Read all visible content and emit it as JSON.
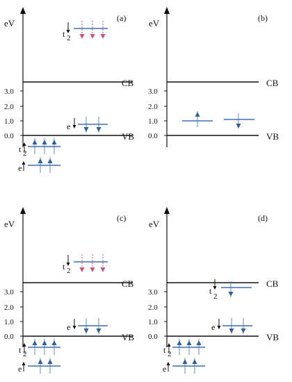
{
  "panels": [
    {
      "label": "(a)",
      "y_axis_label": "eV",
      "cb_label": "CB",
      "vb_label": "VB",
      "ticks": [
        "3.0",
        "2.0",
        "1.0",
        "0.0"
      ],
      "levels": [
        {
          "symbol": "t",
          "sub": "2",
          "kind": "empty_down"
        },
        {
          "symbol": "e",
          "sub": "",
          "kind": "filled_down"
        },
        {
          "symbol": "t",
          "sub": "2",
          "kind": "filled_up"
        },
        {
          "symbol": "e",
          "sub": "",
          "kind": "filled_up"
        }
      ]
    },
    {
      "label": "(b)",
      "y_axis_label": "eV",
      "cb_label": "CB",
      "vb_label": "VB",
      "ticks": [
        "3.0",
        "2.0",
        "1.0",
        "0.0"
      ],
      "levels": [
        {
          "symbol": "",
          "sub": "",
          "kind": "spin_up"
        },
        {
          "symbol": "",
          "sub": "",
          "kind": "spin_down"
        }
      ]
    },
    {
      "label": "(c)",
      "y_axis_label": "eV",
      "cb_label": "CB",
      "vb_label": "VB",
      "ticks": [
        "3.0",
        "2.0",
        "1.0",
        "0.0"
      ],
      "levels": [
        {
          "symbol": "t",
          "sub": "2",
          "kind": "empty_down"
        },
        {
          "symbol": "e",
          "sub": "",
          "kind": "filled_down"
        },
        {
          "symbol": "t",
          "sub": "2",
          "kind": "filled_up"
        },
        {
          "symbol": "e",
          "sub": "",
          "kind": "filled_up"
        }
      ]
    },
    {
      "label": "(d)",
      "y_axis_label": "eV",
      "cb_label": "CB",
      "vb_label": "VB",
      "ticks": [
        "3.0",
        "2.0",
        "1.0",
        "0.0"
      ],
      "levels": [
        {
          "symbol": "t",
          "sub": "2",
          "kind": "filled_down"
        },
        {
          "symbol": "e",
          "sub": "",
          "kind": "filled_down"
        },
        {
          "symbol": "t",
          "sub": "2",
          "kind": "filled_up"
        },
        {
          "symbol": "e",
          "sub": "",
          "kind": "filled_up"
        }
      ]
    }
  ],
  "colors": {
    "level_line": "#3b6fb6",
    "filled_arrow": "#2e5f9e",
    "empty_arrow": "#d0507a",
    "axis": "#111111"
  }
}
